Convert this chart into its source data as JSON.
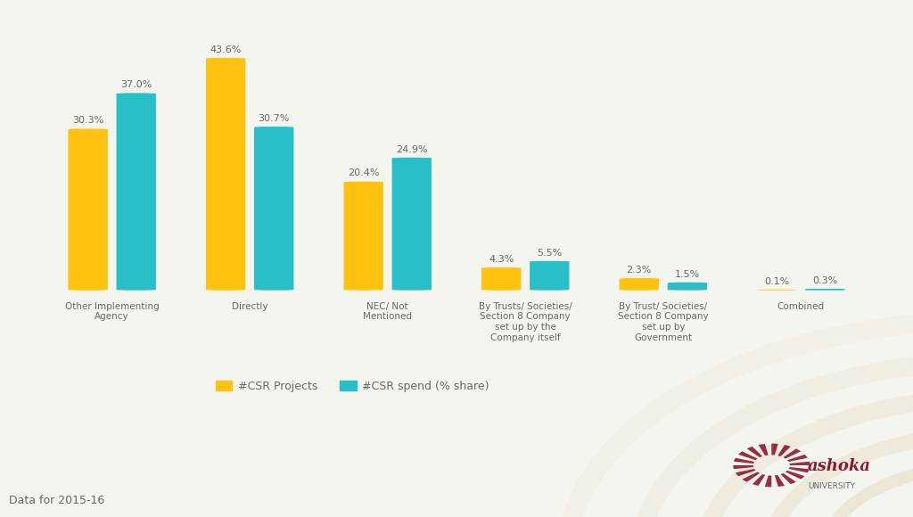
{
  "categories": [
    "Other Implementing\nAgency",
    "Directly",
    "NEC/ Not\nMentioned",
    "By Trusts/ Societies/\nSection 8 Company\nset up by the\nCompany itself",
    "By Trust/ Societies/\nSection 8 Company\nset up by\nGovernment",
    "Combined"
  ],
  "csr_projects": [
    30.3,
    43.6,
    20.4,
    4.3,
    2.3,
    0.1
  ],
  "csr_spend": [
    37.0,
    30.7,
    24.9,
    5.5,
    1.5,
    0.3
  ],
  "color_projects": "#FFC20E",
  "color_spend": "#29BFC9",
  "background_color": "#F5F5F0",
  "legend_labels": [
    "#CSR Projects",
    "#CSR spend (% share)"
  ],
  "footer_text": "Data for 2015-16",
  "bar_width": 0.35,
  "ylim": [
    0,
    50
  ],
  "ashoka_text1": "ashoka",
  "ashoka_text2": "UNIVERSITY",
  "ashoka_color": "#8B1A2F",
  "swirl_color": "#D4BC8A",
  "label_color": "#666666"
}
